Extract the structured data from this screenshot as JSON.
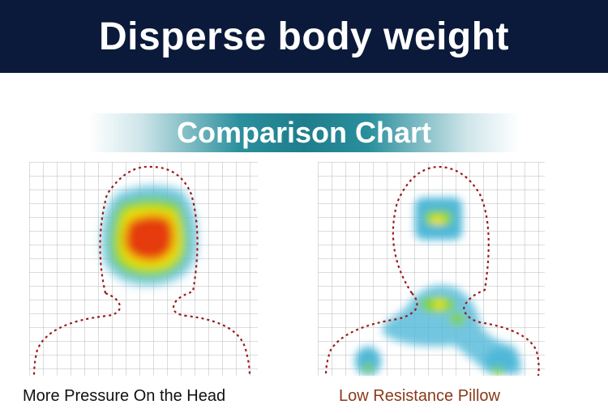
{
  "header": {
    "title": "Disperse body weight"
  },
  "subtitle": {
    "text": "Comparison Chart"
  },
  "panels": [
    {
      "caption": "More Pressure On the Head",
      "caption_color": "#111111"
    },
    {
      "caption": "Low Resistance Pillow",
      "caption_color": "#8a3a1a"
    }
  ],
  "colors": {
    "header_bg": "#0b1a3a",
    "band_teal": "#1f7d8c",
    "outline": "#9b1b1b",
    "heat_low": "#4fb8d8",
    "heat_mid": "#7ed321",
    "heat_high": "#f5e60a",
    "heat_peak": "#e53a0b"
  }
}
